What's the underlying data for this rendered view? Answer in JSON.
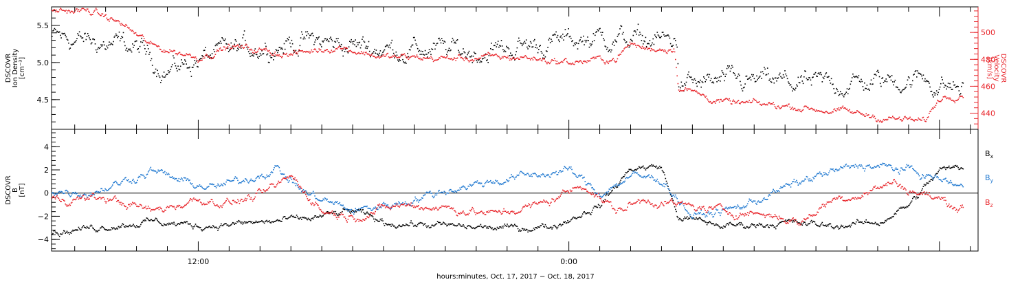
{
  "chart_data": [
    {
      "id": "density-velocity",
      "type": "scatter",
      "title": "",
      "x_range_hours": [
        -16.75,
        13.25
      ],
      "left_axis": {
        "label_lines": [
          "DSCOVR",
          "Ion Density",
          "[cm⁻³]"
        ],
        "ylim": [
          4.1,
          5.75
        ],
        "ticks": [
          4.5,
          5.0,
          5.5
        ],
        "tick_labels": [
          "4.5",
          "5.0",
          "5.5"
        ],
        "color": "#000000"
      },
      "right_axis": {
        "label_lines": [
          "DSCOVR",
          "Velocity",
          "[km/s]"
        ],
        "ylim": [
          428,
          519
        ],
        "ticks": [
          440,
          460,
          480,
          500
        ],
        "tick_labels": [
          "440",
          "460",
          "480",
          "500"
        ],
        "color": "#e8242a"
      },
      "series": [
        {
          "axis": "left",
          "color": "#000000",
          "knots": [
            [
              -16.75,
              5.35
            ],
            [
              -14.0,
              5.2
            ],
            [
              -13.0,
              4.9
            ],
            [
              -12.0,
              5.05
            ],
            [
              -10.5,
              5.2
            ],
            [
              -8.5,
              5.3
            ],
            [
              -6.0,
              5.2
            ],
            [
              -3.0,
              5.15
            ],
            [
              -1.0,
              5.25
            ],
            [
              1.0,
              5.35
            ],
            [
              2.5,
              5.3
            ],
            [
              3.5,
              5.3
            ],
            [
              3.55,
              4.7
            ],
            [
              6.0,
              4.75
            ],
            [
              8.0,
              4.7
            ],
            [
              10.0,
              4.75
            ],
            [
              11.5,
              4.8
            ],
            [
              12.0,
              4.7
            ],
            [
              12.75,
              4.65
            ]
          ],
          "spread": 0.22
        },
        {
          "axis": "right",
          "color": "#e8242a",
          "knots": [
            [
              -16.75,
              517
            ],
            [
              -15.5,
              516
            ],
            [
              -14.5,
              507
            ],
            [
              -13.5,
              490
            ],
            [
              -12.0,
              482
            ],
            [
              -11.0,
              490
            ],
            [
              -9.0,
              484
            ],
            [
              -7.5,
              490
            ],
            [
              -6.0,
              482
            ],
            [
              -4.0,
              481
            ],
            [
              -1.5,
              482
            ],
            [
              0.0,
              478
            ],
            [
              1.5,
              481
            ],
            [
              2.0,
              492
            ],
            [
              2.5,
              488
            ],
            [
              3.4,
              489
            ],
            [
              3.55,
              460
            ],
            [
              5.0,
              448
            ],
            [
              7.0,
              446
            ],
            [
              9.0,
              441
            ],
            [
              10.5,
              436
            ],
            [
              11.5,
              434
            ],
            [
              12.0,
              452
            ],
            [
              12.75,
              456
            ]
          ],
          "spread": 4
        }
      ]
    },
    {
      "id": "magnetic-field",
      "type": "scatter",
      "title": "",
      "x_range_hours": [
        -16.75,
        13.25
      ],
      "left_axis": {
        "label_lines": [
          "DSCOVR",
          "B",
          "[nT]"
        ],
        "ylim": [
          -5,
          5.5
        ],
        "ticks": [
          -4,
          -2,
          0,
          2,
          4
        ],
        "tick_labels": [
          "−4",
          "−2",
          "0",
          "2",
          "4"
        ],
        "color": "#000000"
      },
      "zero_line": true,
      "series": [
        {
          "name": "Bx",
          "name_main": "B",
          "name_sub": "x",
          "color": "#000000",
          "knots": [
            [
              -16.75,
              -3.4
            ],
            [
              -15.0,
              -2.8
            ],
            [
              -13.5,
              -2.4
            ],
            [
              -12.0,
              -2.8
            ],
            [
              -10.0,
              -2.5
            ],
            [
              -8.5,
              -2.2
            ],
            [
              -7.0,
              -1.5
            ],
            [
              -6.0,
              -2.5
            ],
            [
              -4.0,
              -2.8
            ],
            [
              -2.0,
              -3.0
            ],
            [
              -0.5,
              -2.8
            ],
            [
              1.0,
              -1.0
            ],
            [
              2.0,
              2.2
            ],
            [
              3.0,
              2.3
            ],
            [
              3.5,
              -2.0
            ],
            [
              5.0,
              -2.8
            ],
            [
              7.0,
              -2.5
            ],
            [
              8.5,
              -2.8
            ],
            [
              10.0,
              -2.5
            ],
            [
              11.0,
              -1.0
            ],
            [
              12.0,
              2.0
            ],
            [
              12.75,
              2.3
            ]
          ],
          "spread": 0.45
        },
        {
          "name": "By",
          "name_main": "B",
          "name_sub": "y",
          "color": "#1f78d0",
          "knots": [
            [
              -16.75,
              0.2
            ],
            [
              -15.5,
              0.1
            ],
            [
              -14.5,
              1.0
            ],
            [
              -13.5,
              2.0
            ],
            [
              -12.5,
              1.0
            ],
            [
              -11.5,
              0.5
            ],
            [
              -10.5,
              1.2
            ],
            [
              -9.5,
              2.2
            ],
            [
              -8.5,
              0.0
            ],
            [
              -7.0,
              -1.5
            ],
            [
              -5.5,
              -0.8
            ],
            [
              -3.5,
              0.6
            ],
            [
              -1.5,
              1.5
            ],
            [
              0.0,
              2.0
            ],
            [
              1.0,
              0.0
            ],
            [
              2.0,
              1.5
            ],
            [
              3.0,
              1.2
            ],
            [
              4.0,
              -2.0
            ],
            [
              5.5,
              -1.2
            ],
            [
              7.0,
              0.5
            ],
            [
              8.0,
              1.5
            ],
            [
              9.5,
              2.5
            ],
            [
              11.0,
              2.0
            ],
            [
              12.0,
              1.2
            ],
            [
              12.75,
              0.6
            ]
          ],
          "spread": 0.55
        },
        {
          "name": "Bz",
          "name_main": "B",
          "name_sub": "z",
          "color": "#e8242a",
          "knots": [
            [
              -16.75,
              -0.5
            ],
            [
              -15.0,
              -0.4
            ],
            [
              -13.5,
              -1.5
            ],
            [
              -12.0,
              -0.5
            ],
            [
              -11.0,
              -0.8
            ],
            [
              -10.0,
              -0.2
            ],
            [
              -9.0,
              1.5
            ],
            [
              -8.0,
              -1.5
            ],
            [
              -7.0,
              -2.0
            ],
            [
              -5.5,
              -1.0
            ],
            [
              -4.0,
              -1.2
            ],
            [
              -2.5,
              -1.8
            ],
            [
              -1.0,
              -1.0
            ],
            [
              0.5,
              0.8
            ],
            [
              1.5,
              -1.5
            ],
            [
              2.5,
              -0.5
            ],
            [
              3.5,
              -1.0
            ],
            [
              5.0,
              -1.5
            ],
            [
              6.5,
              -1.8
            ],
            [
              7.5,
              -2.5
            ],
            [
              8.5,
              -0.5
            ],
            [
              9.5,
              0.0
            ],
            [
              10.5,
              1.0
            ],
            [
              11.0,
              0.3
            ],
            [
              12.0,
              -0.5
            ],
            [
              12.75,
              -1.3
            ]
          ],
          "spread": 0.55
        }
      ]
    }
  ],
  "x_axis": {
    "label": "hours:minutes, Oct. 17, 2017 − Oct. 18, 2017",
    "ticks": [
      -12,
      0,
      12
    ],
    "tick_labels": [
      "12:00",
      "0:00"
    ],
    "labeled_ticks_hours": [
      -12,
      0
    ]
  }
}
